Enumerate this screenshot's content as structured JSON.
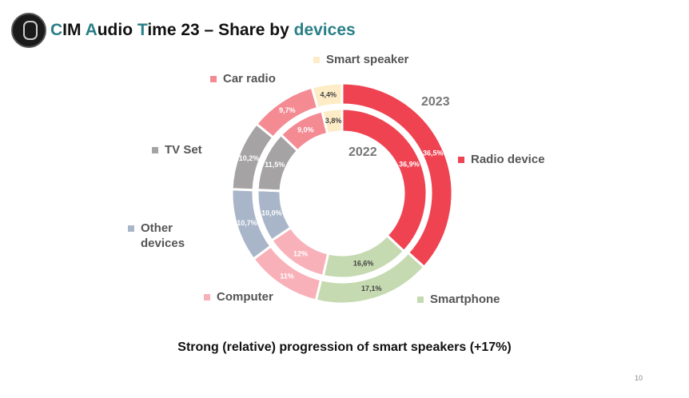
{
  "title": {
    "c": "C",
    "im": "IM ",
    "a": "A",
    "udio": "udio ",
    "t": "T",
    "rest": "ime 23 – Share by ",
    "devices": "devices"
  },
  "caption": "Strong (relative) progression of smart speakers (+17%)",
  "page_number": "10",
  "chart_data": {
    "type": "donut",
    "title": "CIM Audio Time 23 – Share by devices",
    "rings": [
      "2022",
      "2023"
    ],
    "categories": [
      "Radio device",
      "Smartphone",
      "Computer",
      "Other devices",
      "TV Set",
      "Car radio",
      "Smart speaker"
    ],
    "colors": [
      "#ef4352",
      "#c5dab0",
      "#f9b1b9",
      "#a9b6c9",
      "#a5a3a3",
      "#f48b93",
      "#fdecc6"
    ],
    "series": [
      {
        "name": "2022",
        "values": [
          36.9,
          16.6,
          12,
          10.0,
          11.5,
          9.0,
          3.8
        ],
        "labels": [
          "36,9%",
          "16,6%",
          "12%",
          "10,0%",
          "11,5%",
          "9,0%",
          "3,8%"
        ]
      },
      {
        "name": "2023",
        "values": [
          36.5,
          17.1,
          11,
          10.7,
          10.2,
          9.7,
          4.4
        ],
        "labels": [
          "36,5%",
          "17,1%",
          "11%",
          "10,7%",
          "10,2%",
          "9,7%",
          "4,4%"
        ]
      }
    ],
    "legend": [
      "Radio device",
      "Smartphone",
      "Computer",
      "Other devices",
      "TV Set",
      "Car radio",
      "Smart speaker"
    ],
    "legend_lines": [
      [
        "Radio device"
      ],
      [
        "Smartphone"
      ],
      [
        "Computer"
      ],
      [
        "Other",
        "devices"
      ],
      [
        "TV Set"
      ],
      [
        "Car radio"
      ],
      [
        "Smart speaker"
      ]
    ]
  }
}
